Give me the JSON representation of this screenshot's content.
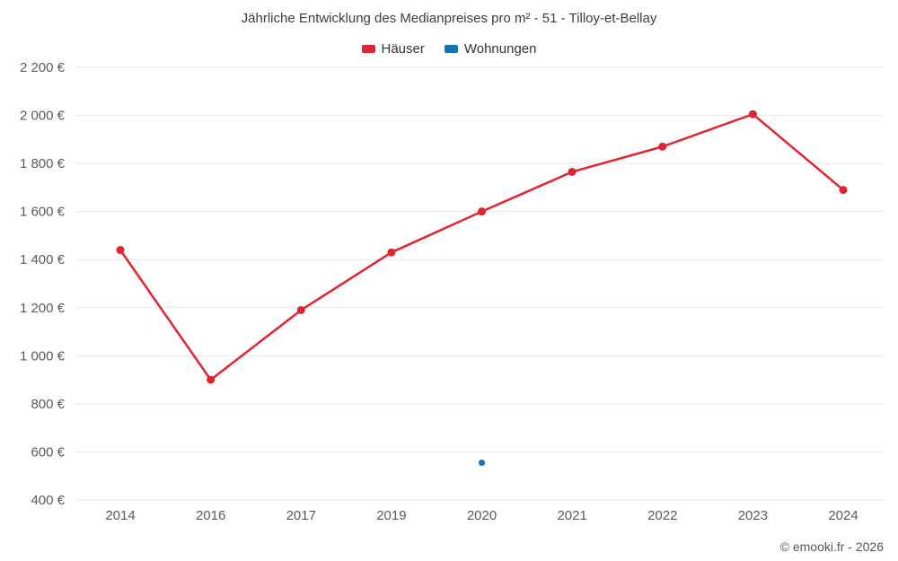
{
  "chart_data": {
    "type": "line",
    "title": "Jährliche Entwicklung des Medianpreises pro m² - 51 - Tilloy-et-Bellay",
    "categories": [
      "2014",
      "2016",
      "2017",
      "2019",
      "2020",
      "2021",
      "2022",
      "2023",
      "2024"
    ],
    "series": [
      {
        "name": "Häuser",
        "color": "#e02431",
        "marker_radius": 4.5,
        "values": [
          1440,
          900,
          1190,
          1430,
          1600,
          1765,
          1870,
          2005,
          1690
        ]
      },
      {
        "name": "Wohnungen",
        "color": "#1673b1",
        "marker_radius": 3.5,
        "values": [
          null,
          null,
          null,
          null,
          555,
          null,
          null,
          null,
          null
        ]
      }
    ],
    "ylim": [
      400,
      2200
    ],
    "y_ticks": [
      {
        "value": 400,
        "label": "400 €"
      },
      {
        "value": 600,
        "label": "600 €"
      },
      {
        "value": 800,
        "label": "800 €"
      },
      {
        "value": 1000,
        "label": "1 000 €"
      },
      {
        "value": 1200,
        "label": "1 200 €"
      },
      {
        "value": 1400,
        "label": "1 400 €"
      },
      {
        "value": 1600,
        "label": "1 600 €"
      },
      {
        "value": 1800,
        "label": "1 800 €"
      },
      {
        "value": 2000,
        "label": "2 000 €"
      },
      {
        "value": 2200,
        "label": "2 200 €"
      }
    ],
    "grid": "horizontal",
    "grid_color": "#e8e8e8",
    "legend_position": "top",
    "xlabel": "",
    "ylabel": ""
  },
  "footer": {
    "copyright": "© emooki.fr - 2026"
  }
}
